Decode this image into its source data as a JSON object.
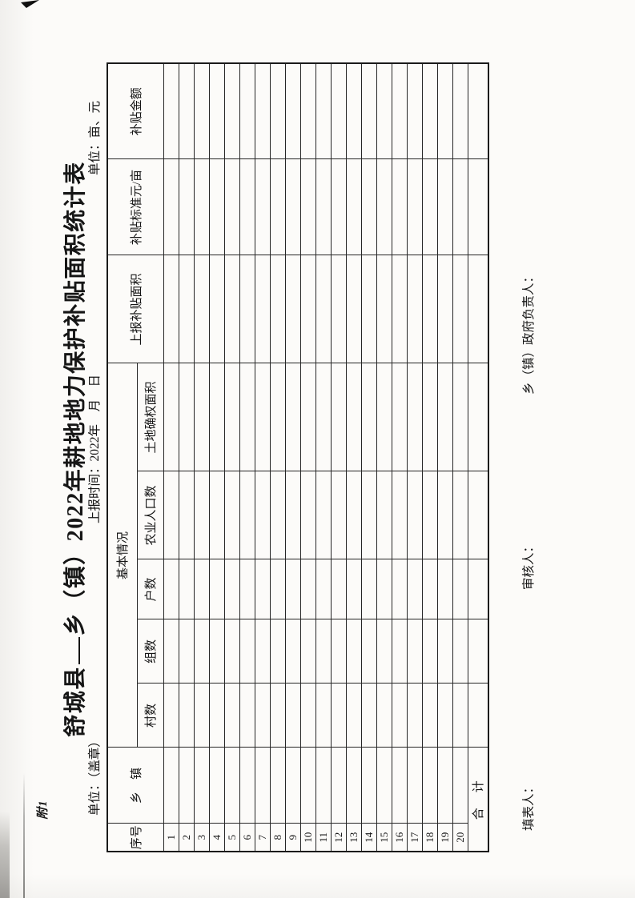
{
  "document": {
    "attachment_label": "附1",
    "title": {
      "prefix": "舒城县",
      "rest": "乡（镇）2022年耕地地力保护补贴面积统计表",
      "full": "舒城县___乡（镇）2022年耕地地力保护补贴面积统计表"
    },
    "meta": {
      "unit_seal": "单位：（盖章）",
      "report_time": "上报时间：2022年　月　日",
      "unit_measure": "单位：亩、元"
    },
    "footer": {
      "preparer": "填表人：",
      "reviewer": "审核人：",
      "township_head": "乡（镇）政府负责人："
    }
  },
  "table": {
    "headers": {
      "serial": "序号",
      "township": "乡　镇",
      "basic_group": "基本情况",
      "villages": "村数",
      "groups": "组数",
      "households": "户数",
      "agri_population": "农业人口数",
      "land_confirmed_area": "土地确权面积",
      "reported_subsidy_area": "上报补贴面积",
      "subsidy_standard": "补贴标准元/亩",
      "subsidy_amount": "补贴金额"
    },
    "row_numbers": [
      "1",
      "2",
      "3",
      "4",
      "5",
      "6",
      "7",
      "8",
      "9",
      "10",
      "11",
      "12",
      "13",
      "14",
      "15",
      "16",
      "17",
      "18",
      "19",
      "20"
    ],
    "total_label": "合　计",
    "data_columns_count": 9,
    "all_data_cells_empty": true
  },
  "colors": {
    "paper": "#fcfbf9",
    "border": "#1a1a1a",
    "text": "#161616"
  }
}
